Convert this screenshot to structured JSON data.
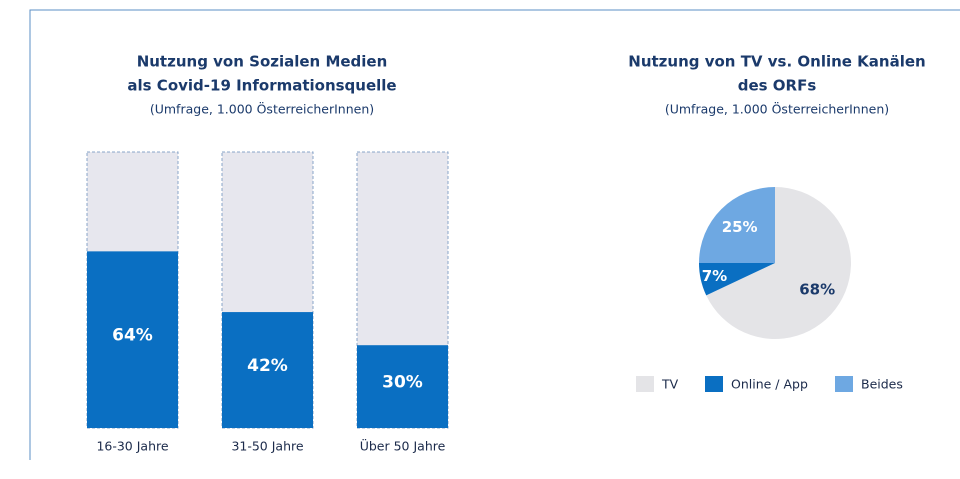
{
  "chart_data": [
    {
      "type": "bar",
      "title": "Nutzung von Sozialen Medien",
      "title_line2": "als Covid-19 Informationsquelle",
      "subtitle": "(Umfrage, 1.000 ÖsterreicherInnen)",
      "categories": [
        "16-30 Jahre",
        "31-50 Jahre",
        "Über 50 Jahre"
      ],
      "values": [
        64,
        42,
        30
      ],
      "value_labels": [
        "64%",
        "42%",
        "30%"
      ],
      "color": "#0a6fc2",
      "ylim": [
        0,
        100
      ]
    },
    {
      "type": "pie",
      "title": "Nutzung von TV vs. Online Kanälen",
      "title_line2": "des ORFs",
      "subtitle": "(Umfrage, 1.000 ÖsterreicherInnen)",
      "categories": [
        "TV",
        "Online / App",
        "Beides"
      ],
      "values": [
        68,
        7,
        25
      ],
      "value_labels": [
        "68%",
        "7%",
        "25%"
      ],
      "colors": [
        "#e4e4e7",
        "#0a6fc2",
        "#6ea8e2"
      ]
    }
  ]
}
